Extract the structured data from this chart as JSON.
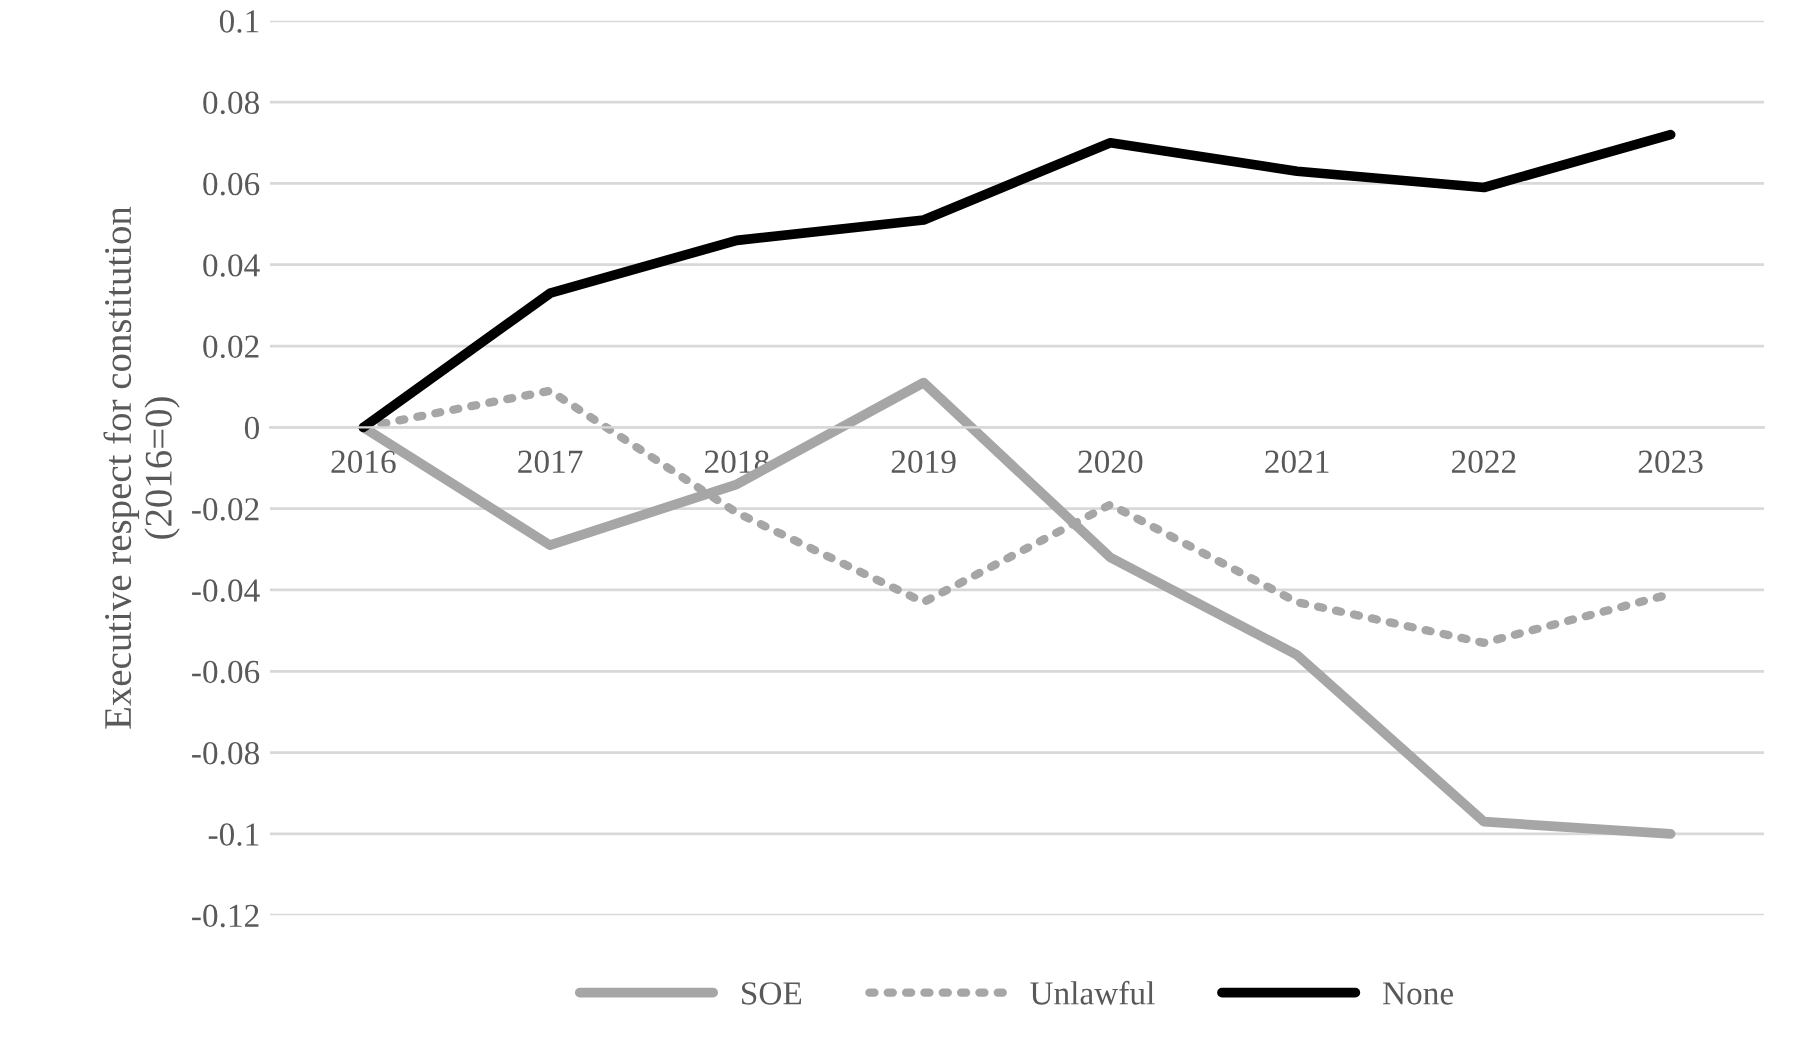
{
  "chart_data": {
    "type": "line",
    "ylabel": "Executive respect for constitution\n(2016=0)",
    "categories": [
      "2016",
      "2017",
      "2018",
      "2019",
      "2020",
      "2021",
      "2022",
      "2023"
    ],
    "series": [
      {
        "name": "SOE",
        "color": "#a6a6a6",
        "line_style": "solid",
        "values": [
          0,
          -0.029,
          -0.014,
          0.011,
          -0.032,
          -0.056,
          -0.097,
          -0.1
        ]
      },
      {
        "name": "Unlawful",
        "color": "#a6a6a6",
        "line_style": "dotted",
        "values": [
          0,
          0.009,
          -0.021,
          -0.043,
          -0.019,
          -0.043,
          -0.053,
          -0.041
        ]
      },
      {
        "name": "None",
        "color": "#000000",
        "line_style": "solid",
        "values": [
          0,
          0.033,
          0.046,
          0.051,
          0.07,
          0.063,
          0.059,
          0.072
        ]
      }
    ],
    "ylim": [
      -0.12,
      0.1
    ],
    "yticks": [
      -0.12,
      -0.1,
      -0.08,
      -0.06,
      -0.04,
      -0.02,
      0,
      0.02,
      0.04,
      0.06,
      0.08,
      0.1
    ],
    "grid": "y",
    "legend": "bottom",
    "marker": "none"
  }
}
